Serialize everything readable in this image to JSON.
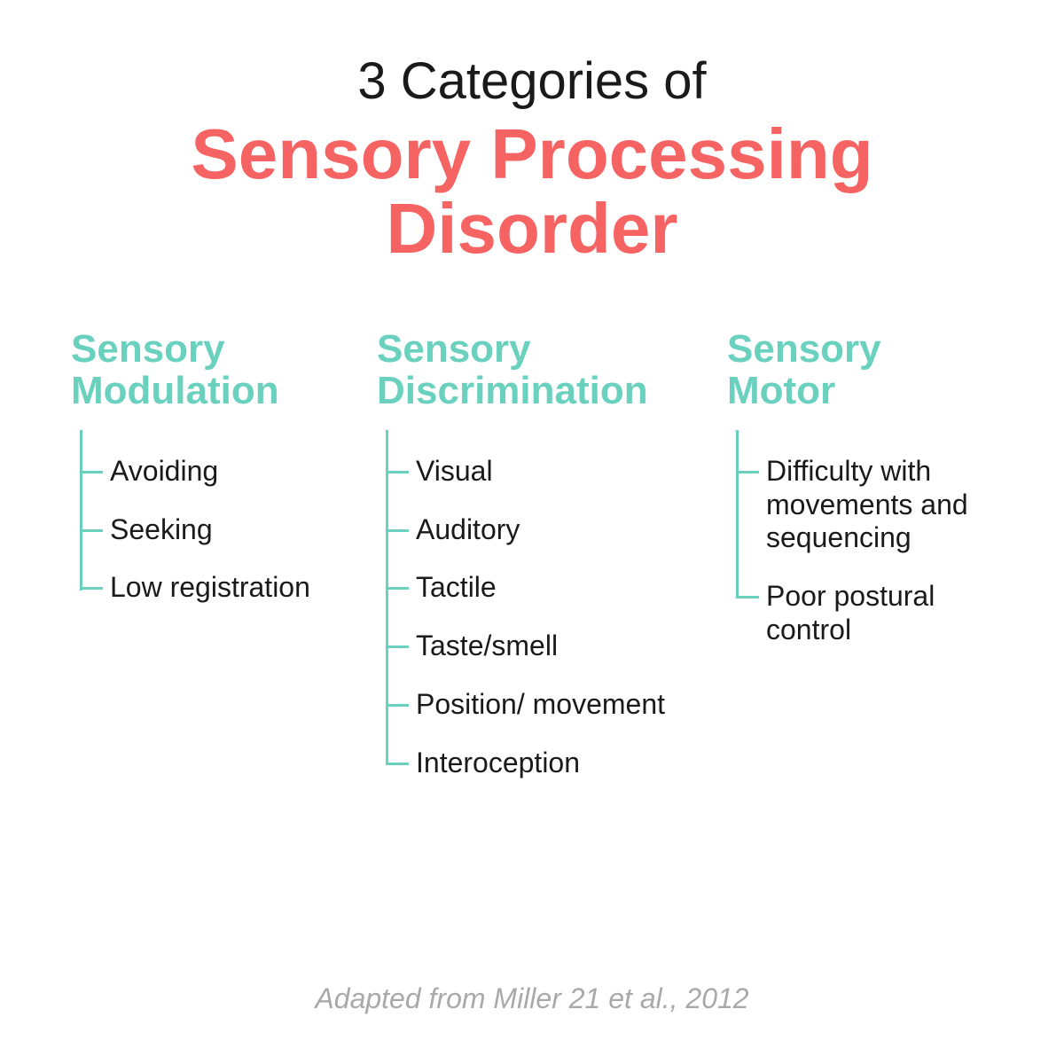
{
  "colors": {
    "accent_teal": "#6ad1bf",
    "accent_coral": "#f66363",
    "text_dark": "#1a1a1a",
    "text_muted": "#a9a9a9",
    "background": "#ffffff",
    "tree_line": "#6ad1bf"
  },
  "typography": {
    "title_line1_fontsize": 58,
    "title_main_fontsize": 80,
    "heading_fontsize": 44,
    "item_fontsize": 32,
    "citation_fontsize": 32
  },
  "title": {
    "line1": "3 Categories of",
    "main": "Sensory Processing Disorder"
  },
  "categories": [
    {
      "heading": "Sensory Modulation",
      "items": [
        "Avoiding",
        "Seeking",
        "Low registration"
      ]
    },
    {
      "heading": "Sensory Discrimination",
      "items": [
        "Visual",
        "Auditory",
        "Tactile",
        "Taste/smell",
        "Position/ movement",
        "Interoception"
      ]
    },
    {
      "heading": "Sensory Motor",
      "items": [
        "Difficulty with movements and sequencing",
        "Poor postural control"
      ]
    }
  ],
  "citation": "Adapted from Miller 21 et al., 2012",
  "layout": {
    "type": "tree",
    "columns": 3,
    "tree_line_width": 3,
    "tree_tick_length": 26
  }
}
